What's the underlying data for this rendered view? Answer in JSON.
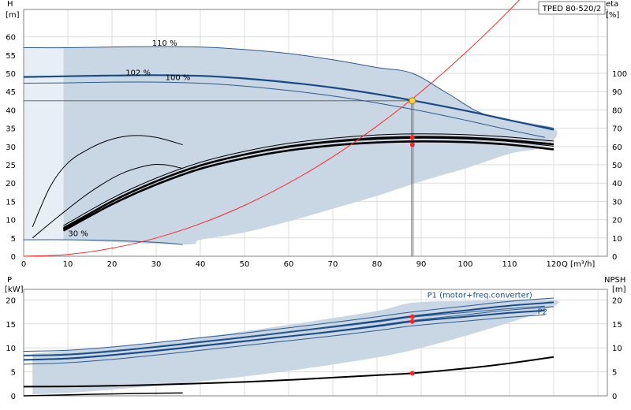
{
  "colors": {
    "band": "#c9d6e3",
    "band_edge": "#2d5b8e",
    "main_curve": "#1a4a86",
    "system_curve": "#ff2a2a",
    "op_point_fill": "#ffd23f",
    "op_marker": "#ff2020",
    "grid": "#dcdcdc",
    "black_curve": "#000000",
    "tag_border": "#808080"
  },
  "chart_data": [
    {
      "type": "line",
      "product_label": "TPED 80-520/2",
      "left_axis": {
        "label": "H",
        "unit": "[m]",
        "ticks": [
          0,
          5,
          10,
          15,
          20,
          25,
          30,
          35,
          40,
          45,
          50,
          55,
          60
        ],
        "range": [
          0,
          65
        ]
      },
      "right_axis": {
        "label": "eta",
        "unit": "[%]",
        "ticks": [
          0,
          10,
          20,
          30,
          40,
          50,
          60,
          70,
          80,
          90,
          100
        ],
        "range": [
          0,
          130
        ]
      },
      "x_axis": {
        "label": "Q [m³/h]",
        "ticks": [
          0,
          10,
          20,
          30,
          40,
          50,
          60,
          70,
          80,
          90,
          100,
          110,
          120
        ],
        "range": [
          0,
          128
        ]
      },
      "grid": true,
      "operating_point": {
        "q": 88,
        "h": 42.5
      },
      "eta_markers": [
        {
          "q": 88,
          "eta": 65
        },
        {
          "q": 88,
          "eta": 61
        }
      ],
      "series": [
        {
          "name": "110 %",
          "label_at": [
            28,
            57.5
          ],
          "x": [
            0,
            10,
            20,
            30,
            40,
            50,
            60,
            70,
            80,
            88,
            96,
            105,
            120
          ],
          "y": [
            57,
            57,
            57.2,
            57.3,
            57.2,
            56.5,
            55.4,
            53.7,
            51.6,
            50,
            44.5,
            38.5,
            35
          ]
        },
        {
          "name": "102 %",
          "label_at": [
            22,
            49.5
          ],
          "x": [
            0,
            10,
            20,
            30,
            40,
            50,
            60,
            70,
            80,
            88,
            100,
            110,
            120
          ],
          "y": [
            49,
            49.2,
            49.4,
            49.5,
            49.3,
            48.6,
            47.5,
            46.1,
            44.3,
            42.6,
            39.8,
            37.2,
            34.6
          ]
        },
        {
          "name": "100 %",
          "label_at": [
            31,
            48.2
          ],
          "x": [
            0,
            10,
            20,
            30,
            40,
            50,
            60,
            70,
            80,
            90,
            100,
            110,
            118
          ],
          "y": [
            47.3,
            47.4,
            47.6,
            47.6,
            47.3,
            46.5,
            45.3,
            43.8,
            41.9,
            39.7,
            37.2,
            34.5,
            32.5
          ]
        },
        {
          "name": "30 %",
          "label_at": [
            9,
            5.5
          ],
          "x": [
            0,
            10,
            20,
            30,
            36
          ],
          "y": [
            4.5,
            4.5,
            4.3,
            3.8,
            3.2
          ]
        },
        {
          "name": "",
          "x": [
            0,
            10,
            20,
            30,
            40,
            50,
            60,
            70,
            80,
            90,
            100,
            110,
            120
          ],
          "y": [
            0,
            0.5,
            2.2,
            5,
            8.9,
            13.9,
            20,
            27.2,
            35.6,
            45,
            55.6,
            67.3,
            80.1
          ]
        }
      ],
      "efficiency_curves": [
        {
          "x": [
            2,
            6,
            10,
            15,
            20,
            25,
            30,
            36
          ],
          "y": [
            8,
            19,
            25.5,
            29.5,
            32,
            33,
            32.5,
            30.5
          ]
        },
        {
          "x": [
            2,
            8,
            15,
            22,
            28,
            32,
            36
          ],
          "y": [
            5,
            11,
            17.5,
            22.5,
            24.8,
            25,
            24
          ]
        },
        {
          "x": [
            9,
            20,
            30,
            40,
            50,
            60,
            70,
            80,
            90,
            100,
            110,
            120
          ],
          "y": [
            7.5,
            15,
            20.5,
            24.8,
            27.8,
            30,
            31.4,
            32.3,
            32.6,
            32.4,
            31.7,
            30.6
          ]
        },
        {
          "x": [
            9,
            20,
            30,
            40,
            50,
            60,
            70,
            80,
            90,
            100,
            110,
            120
          ],
          "y": [
            7,
            14.2,
            19.6,
            23.9,
            26.8,
            28.9,
            30.3,
            31.1,
            31.4,
            31.2,
            30.5,
            29.2
          ]
        }
      ],
      "band_polygon": {
        "x": [
          9,
          20,
          30,
          40,
          50,
          60,
          70,
          80,
          88,
          96,
          105,
          120,
          118,
          110,
          100,
          90,
          80,
          70,
          60,
          50,
          40,
          36,
          9
        ],
        "y": [
          57,
          57.2,
          57.3,
          57.2,
          56.5,
          55.4,
          53.7,
          51.6,
          50,
          44.5,
          38.5,
          35,
          30,
          28,
          24,
          20.5,
          16.5,
          13,
          9.5,
          6.5,
          4.5,
          3.2,
          4.5
        ]
      }
    },
    {
      "type": "line",
      "left_axis": {
        "label": "P",
        "unit": "[kW]",
        "ticks": [
          0,
          5,
          10,
          15,
          20
        ],
        "range": [
          0,
          22
        ]
      },
      "right_axis": {
        "label": "NPSH",
        "unit": "[m]",
        "ticks": [
          0,
          5,
          10,
          15,
          20
        ],
        "range": [
          0,
          22
        ]
      },
      "x_axis": {
        "range": [
          0,
          128
        ]
      },
      "grid": true,
      "p_markers": [
        {
          "q": 88,
          "p": 16.5
        },
        {
          "q": 88,
          "p": 15.5
        }
      ],
      "npsh_marker": {
        "q": 88,
        "v": 4.7
      },
      "series": [
        {
          "name": "P1 (motor+freq.converter)",
          "label_at": [
            91,
            20.5
          ],
          "x": [
            0,
            10,
            20,
            30,
            40,
            50,
            60,
            70,
            80,
            88,
            100,
            110,
            120
          ],
          "y": [
            8.4,
            8.6,
            9.3,
            10.2,
            11.2,
            12.2,
            13.3,
            14.4,
            15.6,
            16.6,
            17.8,
            18.8,
            19.5
          ]
        },
        {
          "name": "P2",
          "label_at": [
            116,
            17
          ],
          "x": [
            0,
            10,
            20,
            30,
            40,
            50,
            60,
            70,
            80,
            88,
            100,
            110,
            118
          ],
          "y": [
            7.5,
            7.8,
            8.5,
            9.4,
            10.4,
            11.4,
            12.4,
            13.4,
            14.5,
            15.5,
            16.5,
            17.3,
            17.8
          ]
        },
        {
          "name": "",
          "x": [
            0,
            10,
            20,
            30,
            40,
            50,
            60,
            70,
            80,
            88,
            100,
            110,
            120
          ],
          "y": [
            1.9,
            1.95,
            2.1,
            2.3,
            2.6,
            2.9,
            3.3,
            3.8,
            4.3,
            4.7,
            5.7,
            6.8,
            8.1
          ]
        },
        {
          "name": "",
          "x": [
            0,
            10,
            20,
            30,
            36
          ],
          "y": [
            0,
            0.2,
            0.4,
            0.55,
            0.6
          ]
        }
      ],
      "band_polygon": {
        "x": [
          2,
          20,
          40,
          60,
          80,
          88,
          100,
          120,
          118,
          110,
          100,
          90,
          80,
          60,
          40,
          20,
          10,
          2
        ],
        "y": [
          8.8,
          10.2,
          12.2,
          14.8,
          17.7,
          19.4,
          19.8,
          20,
          17.8,
          15.3,
          12.5,
          10,
          8,
          5.2,
          3,
          1.3,
          0.6,
          0.3
        ]
      }
    }
  ]
}
